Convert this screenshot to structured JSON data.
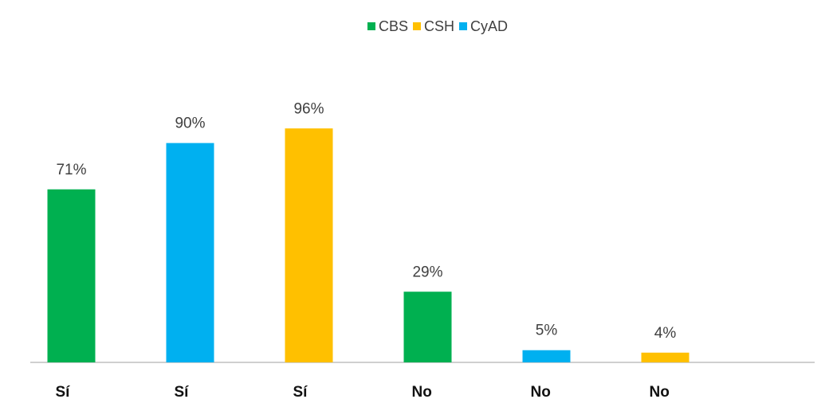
{
  "chart_data": {
    "type": "bar",
    "categories": [
      "Sí",
      "Sí",
      "Sí",
      "No",
      "No",
      "No"
    ],
    "series": [
      {
        "name": "CBS",
        "color": "#00b050",
        "values": [
          71,
          null,
          null,
          29,
          null,
          null
        ],
        "value_labels": [
          "71%",
          null,
          null,
          "29%",
          null,
          null
        ]
      },
      {
        "name": "CSH",
        "color": "#ffc000",
        "values": [
          null,
          null,
          96,
          null,
          null,
          4
        ],
        "value_labels": [
          null,
          null,
          "96%",
          null,
          null,
          "4%"
        ]
      },
      {
        "name": "CyAD",
        "color": "#00b0f0",
        "values": [
          null,
          90,
          null,
          null,
          5,
          null
        ],
        "value_labels": [
          null,
          "90%",
          null,
          null,
          "5%",
          null
        ]
      }
    ],
    "ylim": [
      0,
      100
    ],
    "legend": "top"
  }
}
